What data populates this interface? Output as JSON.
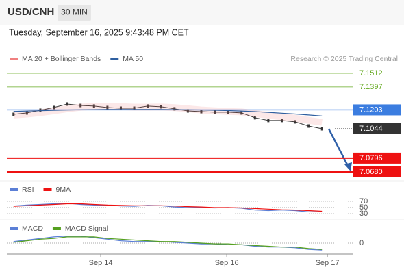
{
  "header": {
    "symbol": "USD/CNH",
    "interval": "30 MIN",
    "datetime": "Tuesday, September 16, 2025 9:43:48 PM CET",
    "credit": "Research © 2025 Trading Central"
  },
  "chart_data": [
    {
      "type": "line",
      "ylim": [
        7.0628,
        7.1581
      ],
      "series": [
        {
          "color": "#333333",
          "values": [
            7.1165,
            7.1177,
            7.12,
            7.1223,
            7.1252,
            7.124,
            7.1235,
            7.1223,
            7.1217,
            7.1217,
            7.1235,
            7.1229,
            7.1212,
            7.1194,
            7.1188,
            7.1183,
            7.1183,
            7.1177,
            7.1137,
            7.1114,
            7.1114,
            7.1102,
            7.1067,
            7.1044
          ]
        },
        {
          "name": "MA 20 + Bollinger Bands",
          "color": "#f08080",
          "values": [
            7.116,
            7.1168,
            7.118,
            7.1195,
            7.1212,
            7.1225,
            7.1232,
            7.1233,
            7.123,
            7.1226,
            7.1226,
            7.1227,
            7.1222,
            7.1212,
            7.1202,
            7.1195,
            7.119,
            7.1186,
            7.1172,
            7.1158,
            7.1145,
            7.1132,
            7.1115,
            7.1098
          ]
        },
        {
          "name": "MA 50",
          "color": "#2f5fa0",
          "values": [
            7.119,
            7.1193,
            7.1196,
            7.1199,
            7.1202,
            7.1204,
            7.1205,
            7.1206,
            7.1206,
            7.1206,
            7.1206,
            7.1206,
            7.1205,
            7.1204,
            7.1202,
            7.12,
            7.1197,
            7.1193,
            7.1188,
            7.1182,
            7.1175,
            7.1168,
            7.116,
            7.1152
          ]
        }
      ],
      "levels": [
        {
          "value": 7.1512,
          "color": "#66aa22",
          "style": "solid",
          "box": false
        },
        {
          "value": 7.1397,
          "color": "#66aa22",
          "style": "solid",
          "box": false
        },
        {
          "value": 7.1203,
          "color": "#3b7de0",
          "style": "solid",
          "box": true
        },
        {
          "value": 7.1044,
          "color": "#333333",
          "style": "dotted",
          "box": true
        },
        {
          "value": 7.0796,
          "color": "#ee1111",
          "style": "thick",
          "box": true
        },
        {
          "value": 7.068,
          "label": "7.0680",
          "color": "#ee1111",
          "style": "thick",
          "box": true
        }
      ]
    },
    {
      "type": "line",
      "ylim": [
        17,
        83
      ],
      "yticks": [
        70,
        50,
        30
      ],
      "series": [
        {
          "name": "RSI",
          "color": "#5b7fd6",
          "values": [
            55,
            58,
            60,
            62,
            64,
            60,
            58,
            57,
            55,
            54,
            57,
            56,
            52,
            50,
            50,
            49,
            50,
            48,
            42,
            40,
            42,
            40,
            36,
            36
          ]
        },
        {
          "name": "9MA",
          "color": "#ee1111",
          "values": [
            54,
            56,
            58,
            60,
            62,
            62,
            60,
            58,
            57,
            56,
            56,
            56,
            55,
            53,
            52,
            50,
            50,
            49,
            47,
            45,
            43,
            42,
            40,
            38
          ]
        }
      ]
    },
    {
      "type": "line",
      "ylim": [
        -0.0015,
        0.0015
      ],
      "yticks": [
        0
      ],
      "xlim": [
        0,
        24
      ],
      "xticks": [
        {
          "value": 7,
          "label": "Sep 14"
        },
        {
          "value": 16.4,
          "label": "Sep 16"
        },
        {
          "value": 23.9,
          "label": "Sep 17"
        }
      ],
      "series": [
        {
          "name": "MACD",
          "color": "#5b7fd6",
          "values": [
            0.0002,
            0.0004,
            0.0006,
            0.0008,
            0.0009,
            0.0009,
            0.0007,
            0.0005,
            0.0003,
            0.0002,
            0.0002,
            0.0002,
            0.0001,
            0,
            -0.0001,
            -0.0001,
            -0.0002,
            -0.0002,
            -0.0004,
            -0.0005,
            -0.0005,
            -0.0006,
            -0.0008,
            -0.0009
          ]
        },
        {
          "name": "MACD Signal",
          "color": "#55a020",
          "values": [
            0.0001,
            0.0003,
            0.0005,
            0.0006,
            0.0008,
            0.0008,
            0.0008,
            0.0006,
            0.0005,
            0.0004,
            0.0003,
            0.0002,
            0.0002,
            0.0001,
            0,
            -0.0001,
            -0.0001,
            -0.0002,
            -0.0003,
            -0.0004,
            -0.0005,
            -0.0005,
            -0.0007,
            -0.0008
          ]
        }
      ]
    }
  ]
}
